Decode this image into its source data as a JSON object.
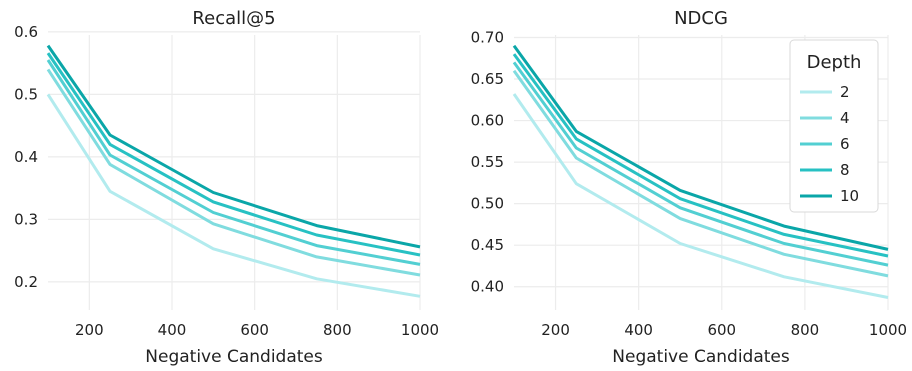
{
  "chart_data": [
    {
      "type": "line",
      "title": "Recall@5",
      "xlabel": "Negative Candidates",
      "ylabel": "",
      "x": [
        100,
        250,
        500,
        750,
        1000
      ],
      "xlim": [
        100,
        1000
      ],
      "ylim": [
        0.155,
        0.595
      ],
      "xticks": [
        200,
        400,
        600,
        800,
        1000
      ],
      "xtick_labels": [
        "200",
        "400",
        "600",
        "800",
        "1000"
      ],
      "yticks": [
        0.2,
        0.3,
        0.4,
        0.5,
        0.6
      ],
      "ytick_labels": [
        "0.2",
        "0.3",
        "0.4",
        "0.5",
        "0.6"
      ],
      "grid": true,
      "series": [
        {
          "name": "2",
          "color": "#b2ebee",
          "values": [
            0.5,
            0.345,
            0.253,
            0.205,
            0.177
          ]
        },
        {
          "name": "4",
          "color": "#80dcdf",
          "values": [
            0.54,
            0.388,
            0.293,
            0.24,
            0.211
          ]
        },
        {
          "name": "6",
          "color": "#52cfd2",
          "values": [
            0.555,
            0.403,
            0.311,
            0.258,
            0.228
          ]
        },
        {
          "name": "8",
          "color": "#27c1c3",
          "values": [
            0.566,
            0.42,
            0.328,
            0.275,
            0.243
          ]
        },
        {
          "name": "10",
          "color": "#0aa6a8",
          "values": [
            0.578,
            0.435,
            0.343,
            0.29,
            0.256
          ]
        }
      ]
    },
    {
      "type": "line",
      "title": "NDCG",
      "xlabel": "Negative Candidates",
      "ylabel": "",
      "x": [
        100,
        250,
        500,
        750,
        1000
      ],
      "xlim": [
        100,
        1000
      ],
      "ylim": [
        0.372,
        0.703
      ],
      "xticks": [
        200,
        400,
        600,
        800,
        1000
      ],
      "xtick_labels": [
        "200",
        "400",
        "600",
        "800",
        "1000"
      ],
      "yticks": [
        0.4,
        0.45,
        0.5,
        0.55,
        0.6,
        0.65,
        0.7
      ],
      "ytick_labels": [
        "0.40",
        "0.45",
        "0.50",
        "0.55",
        "0.60",
        "0.65",
        "0.70"
      ],
      "grid": true,
      "legend": {
        "title": "Depth",
        "placement": "top-right"
      },
      "series": [
        {
          "name": "2",
          "color": "#b2ebee",
          "values": [
            0.632,
            0.524,
            0.452,
            0.412,
            0.387
          ]
        },
        {
          "name": "4",
          "color": "#80dcdf",
          "values": [
            0.66,
            0.555,
            0.482,
            0.439,
            0.413
          ]
        },
        {
          "name": "6",
          "color": "#52cfd2",
          "values": [
            0.67,
            0.567,
            0.495,
            0.452,
            0.426
          ]
        },
        {
          "name": "8",
          "color": "#27c1c3",
          "values": [
            0.68,
            0.578,
            0.506,
            0.463,
            0.437
          ]
        },
        {
          "name": "10",
          "color": "#0aa6a8",
          "values": [
            0.69,
            0.587,
            0.516,
            0.473,
            0.445
          ]
        }
      ]
    }
  ]
}
